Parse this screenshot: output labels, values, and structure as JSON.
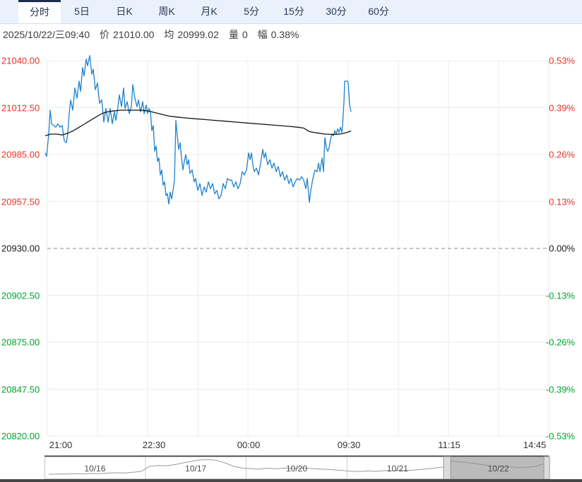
{
  "tabs": {
    "items": [
      {
        "label": "分时",
        "active": true
      },
      {
        "label": "5日",
        "active": false
      },
      {
        "label": "日K",
        "active": false
      },
      {
        "label": "周K",
        "active": false
      },
      {
        "label": "月K",
        "active": false
      },
      {
        "label": "5分",
        "active": false
      },
      {
        "label": "15分",
        "active": false
      },
      {
        "label": "30分",
        "active": false
      },
      {
        "label": "60分",
        "active": false
      }
    ]
  },
  "info_bar": {
    "datetime": "2025/10/22/三09:40",
    "price_label": "价",
    "price_value": "21010.00",
    "avg_label": "均",
    "avg_value": "20999.02",
    "volume_label": "量",
    "volume_value": "0",
    "range_label": "幅",
    "range_value": "0.38%"
  },
  "chart_data": {
    "type": "line",
    "title": "intraday time-share chart (分时)",
    "base_price": 20930,
    "ylim": [
      20820,
      21040
    ],
    "grid": true,
    "y_axis_left_prices": [
      "21040.00",
      "21012.50",
      "20985.00",
      "20957.50",
      "20930.00",
      "20902.50",
      "20875.00",
      "20847.50",
      "20820.00"
    ],
    "y_axis_right_percents": [
      "0.53%",
      "0.39%",
      "0.26%",
      "0.13%",
      "0.00%",
      "-0.13%",
      "-0.26%",
      "-0.39%",
      "-0.53%"
    ],
    "x_axis_times": [
      "21:00",
      "22:30",
      "00:00",
      "09:30",
      "11:15",
      "14:45"
    ],
    "colors": {
      "up": "#e63228",
      "down": "#00a42a",
      "flat": "#1a1a1a",
      "price_line": "#1e81cd",
      "avg_line": "#141414"
    },
    "series": [
      {
        "name": "price",
        "color": "#1e81cd",
        "points": [
          [
            64,
            20986
          ],
          [
            66,
            20984
          ],
          [
            69,
            20997
          ],
          [
            71,
            21011
          ],
          [
            73,
            21003
          ],
          [
            76,
            21002
          ],
          [
            79,
            21001
          ],
          [
            82,
            21003
          ],
          [
            85,
            21001
          ],
          [
            88,
            21002
          ],
          [
            91,
            20993
          ],
          [
            94,
            20992
          ],
          [
            96,
            20998
          ],
          [
            98,
            21009
          ],
          [
            100,
            21017
          ],
          [
            103,
            21011
          ],
          [
            106,
            21024
          ],
          [
            109,
            21018
          ],
          [
            112,
            21028
          ],
          [
            114,
            21022
          ],
          [
            117,
            21036
          ],
          [
            119,
            21031
          ],
          [
            122,
            21041
          ],
          [
            124,
            21037
          ],
          [
            127,
            21043
          ],
          [
            130,
            21032
          ],
          [
            132,
            21035
          ],
          [
            135,
            21023
          ],
          [
            138,
            21027
          ],
          [
            141,
            21015
          ],
          [
            144,
            21017
          ],
          [
            147,
            21004
          ],
          [
            150,
            21012
          ],
          [
            153,
            21004
          ],
          [
            156,
            21012
          ],
          [
            159,
            21003
          ],
          [
            162,
            21010
          ],
          [
            164,
            21005
          ],
          [
            167,
            21013
          ],
          [
            169,
            21020
          ],
          [
            172,
            21013
          ],
          [
            175,
            21024
          ],
          [
            177,
            21012
          ],
          [
            180,
            21016
          ],
          [
            183,
            21009
          ],
          [
            186,
            21013
          ],
          [
            188,
            21026
          ],
          [
            191,
            21018
          ],
          [
            194,
            21013
          ],
          [
            196,
            21017
          ],
          [
            199,
            21010
          ],
          [
            202,
            21016
          ],
          [
            204,
            21009
          ],
          [
            207,
            21014
          ],
          [
            209,
            21009
          ],
          [
            211,
            21012
          ],
          [
            213,
            21010
          ],
          [
            215,
            20999
          ],
          [
            217,
            21002
          ],
          [
            219,
            20987
          ],
          [
            221,
            20990
          ],
          [
            223,
            20981
          ],
          [
            225,
            20983
          ],
          [
            227,
            20973
          ],
          [
            229,
            20976
          ],
          [
            231,
            20967
          ],
          [
            233,
            20969
          ],
          [
            235,
            20961
          ],
          [
            237,
            20962
          ],
          [
            239,
            20956
          ],
          [
            241,
            20963
          ],
          [
            243,
            20959
          ],
          [
            245,
            20964
          ],
          [
            247,
            20970
          ],
          [
            249,
            21005
          ],
          [
            251,
            20996
          ],
          [
            253,
            20988
          ],
          [
            255,
            20992
          ],
          [
            257,
            20983
          ],
          [
            259,
            20976
          ],
          [
            261,
            20981
          ],
          [
            263,
            20985
          ],
          [
            265,
            20979
          ],
          [
            267,
            20982
          ],
          [
            269,
            20974
          ],
          [
            272,
            20976
          ],
          [
            275,
            20969
          ],
          [
            277,
            20971
          ],
          [
            280,
            20964
          ],
          [
            283,
            20968
          ],
          [
            286,
            20961
          ],
          [
            289,
            20966
          ],
          [
            292,
            20963
          ],
          [
            295,
            20969
          ],
          [
            298,
            20965
          ],
          [
            301,
            20968
          ],
          [
            304,
            20962
          ],
          [
            307,
            20964
          ],
          [
            310,
            20959
          ],
          [
            313,
            20961
          ],
          [
            316,
            20968
          ],
          [
            319,
            20965
          ],
          [
            322,
            20971
          ],
          [
            325,
            20970
          ],
          [
            328,
            20970
          ],
          [
            331,
            20966
          ],
          [
            334,
            20969
          ],
          [
            337,
            20965
          ],
          [
            340,
            20968
          ],
          [
            343,
            20975
          ],
          [
            346,
            20973
          ],
          [
            349,
            20976
          ],
          [
            352,
            20986
          ],
          [
            354,
            20982
          ],
          [
            356,
            20986
          ],
          [
            358,
            20979
          ],
          [
            360,
            20975
          ],
          [
            363,
            20977
          ],
          [
            366,
            20973
          ],
          [
            369,
            20980
          ],
          [
            372,
            20988
          ],
          [
            374,
            20983
          ],
          [
            376,
            20986
          ],
          [
            379,
            20979
          ],
          [
            382,
            20982
          ],
          [
            385,
            20977
          ],
          [
            388,
            20980
          ],
          [
            391,
            20975
          ],
          [
            394,
            20978
          ],
          [
            397,
            20972
          ],
          [
            400,
            20975
          ],
          [
            403,
            20970
          ],
          [
            406,
            20973
          ],
          [
            409,
            20968
          ],
          [
            412,
            20971
          ],
          [
            415,
            20966
          ],
          [
            418,
            20969
          ],
          [
            421,
            20971
          ],
          [
            424,
            20970
          ],
          [
            427,
            20972
          ],
          [
            430,
            20970
          ],
          [
            433,
            20965
          ],
          [
            435,
            20971
          ],
          [
            438,
            20957
          ],
          [
            440,
            20964
          ],
          [
            443,
            20971
          ],
          [
            446,
            20976
          ],
          [
            449,
            20975
          ],
          [
            451,
            20980
          ],
          [
            453,
            20975
          ],
          [
            456,
            20983
          ],
          [
            458,
            20975
          ],
          [
            460,
            20995
          ],
          [
            462,
            20989
          ],
          [
            464,
            20987
          ],
          [
            466,
            20989
          ],
          [
            468,
            20994
          ],
          [
            470,
            20997
          ],
          [
            472,
            20996
          ],
          [
            474,
            20999
          ],
          [
            476,
            20997
          ],
          [
            478,
            21000
          ],
          [
            480,
            20998
          ],
          [
            482,
            21001
          ],
          [
            484,
            20998
          ],
          [
            485,
            21002
          ],
          [
            487,
            21016
          ],
          [
            488,
            21028
          ],
          [
            492,
            21028
          ],
          [
            493,
            21027
          ],
          [
            495,
            21014
          ],
          [
            497,
            21010
          ]
        ]
      },
      {
        "name": "average",
        "color": "#141414",
        "points": [
          [
            64,
            20996
          ],
          [
            72,
            20997
          ],
          [
            80,
            20997
          ],
          [
            88,
            20996.5
          ],
          [
            96,
            20997.5
          ],
          [
            104,
            20999
          ],
          [
            112,
            21001
          ],
          [
            120,
            21003
          ],
          [
            128,
            21005
          ],
          [
            136,
            21007
          ],
          [
            144,
            21009
          ],
          [
            152,
            21010
          ],
          [
            160,
            21010.5
          ],
          [
            170,
            21011
          ],
          [
            185,
            21011
          ],
          [
            200,
            21011
          ],
          [
            210,
            21010.5
          ],
          [
            220,
            21009.5
          ],
          [
            230,
            21008.5
          ],
          [
            240,
            21007.5
          ],
          [
            250,
            21007
          ],
          [
            262,
            21006.5
          ],
          [
            275,
            21006
          ],
          [
            290,
            21005.5
          ],
          [
            305,
            21005
          ],
          [
            320,
            21004.5
          ],
          [
            335,
            21004
          ],
          [
            350,
            21003.5
          ],
          [
            365,
            21003
          ],
          [
            380,
            21002.5
          ],
          [
            395,
            21002
          ],
          [
            410,
            21001.5
          ],
          [
            422,
            21001
          ],
          [
            430,
            21000.5
          ],
          [
            434,
            20999.5
          ],
          [
            438,
            20998.5
          ],
          [
            444,
            20998
          ],
          [
            452,
            20997.5
          ],
          [
            460,
            20997
          ],
          [
            470,
            20996.8
          ],
          [
            478,
            20996.9
          ],
          [
            484,
            20997.2
          ],
          [
            490,
            20997.8
          ],
          [
            497,
            20998.8
          ]
        ]
      }
    ]
  },
  "navigator": {
    "dates": [
      "10/16",
      "10/17",
      "10/20",
      "10/21",
      "10/22"
    ],
    "selected_date": "10/22",
    "spark_color": "#9a9a9a",
    "spark": [
      0.08,
      0.1,
      0.09,
      0.12,
      0.1,
      0.13,
      0.12,
      0.15,
      0.17,
      0.16,
      0.2,
      0.25,
      0.55,
      0.6,
      0.58,
      0.65,
      0.75,
      0.85,
      0.93,
      0.95,
      0.9,
      0.75,
      0.55,
      0.45,
      0.42,
      0.38,
      0.44,
      0.4,
      0.45,
      0.42,
      0.46,
      0.43,
      0.4,
      0.37,
      0.34,
      0.3,
      0.26,
      0.24,
      0.28,
      0.25,
      0.3,
      0.28,
      0.33,
      0.31,
      0.36,
      0.4,
      0.46,
      0.5,
      0.85,
      0.8,
      0.76,
      0.7,
      0.62,
      0.55,
      0.5,
      0.52,
      0.47,
      0.5,
      0.56,
      0.72
    ]
  }
}
